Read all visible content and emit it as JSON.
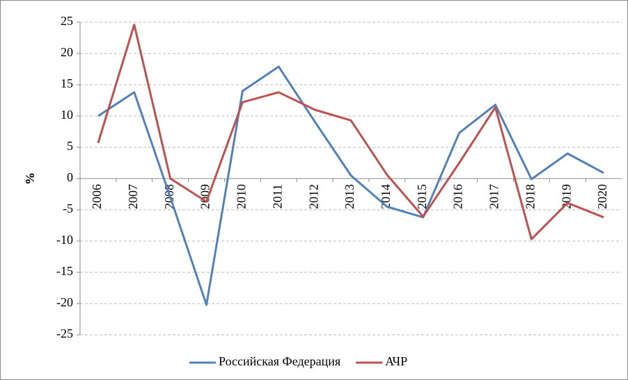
{
  "chart_data": {
    "type": "line",
    "y_label": "%",
    "categories": [
      "2006",
      "2007",
      "2008",
      "2009",
      "2010",
      "2011",
      "2012",
      "2013",
      "2014",
      "2015",
      "2016",
      "2017",
      "2018",
      "2019",
      "2020"
    ],
    "series": [
      {
        "name": "Российская Федерация",
        "color": "#4f81bd",
        "values": [
          10.0,
          13.8,
          -3.0,
          -20.2,
          14.0,
          17.9,
          9.1,
          0.5,
          -4.5,
          -6.2,
          7.3,
          11.8,
          -0.1,
          4.0,
          0.9
        ]
      },
      {
        "name": "АЧР",
        "color": "#c0504d",
        "values": [
          5.7,
          24.6,
          0,
          -3.7,
          12.2,
          13.8,
          11.0,
          9.3,
          0.6,
          -6.1,
          2.5,
          11.4,
          -9.7,
          -3.9,
          -6.2
        ]
      }
    ],
    "ylim": [
      -25,
      25
    ],
    "yticks": [
      -25,
      -20,
      -15,
      -10,
      -5,
      0,
      5,
      10,
      15,
      20,
      25
    ],
    "grid": true,
    "legend": "bottom"
  }
}
